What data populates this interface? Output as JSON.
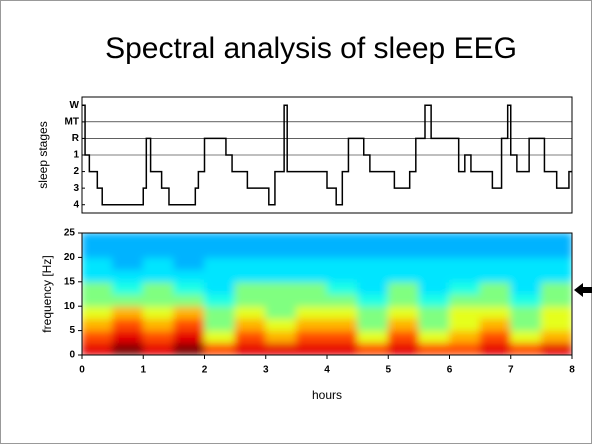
{
  "title": "Spectral analysis of sleep EEG",
  "chart_data": [
    {
      "type": "step",
      "ylabel": "sleep stages",
      "stages": [
        "W",
        "MT",
        "R",
        "1",
        "2",
        "3",
        "4"
      ],
      "xlim": [
        0,
        8
      ],
      "color": "#000000",
      "x": [
        0,
        0.05,
        0.12,
        0.25,
        0.33,
        1.0,
        1.05,
        1.12,
        1.3,
        1.42,
        1.85,
        1.9,
        2.0,
        2.35,
        2.45,
        2.7,
        3.05,
        3.15,
        3.3,
        3.35,
        4.0,
        4.15,
        4.25,
        4.35,
        4.6,
        4.7,
        5.1,
        5.35,
        5.45,
        5.6,
        5.7,
        6.15,
        6.25,
        6.35,
        6.7,
        6.85,
        6.95,
        7.0,
        7.1,
        7.3,
        7.55,
        7.75,
        7.95
      ],
      "values": [
        "W",
        "1",
        "2",
        "3",
        "4",
        "3",
        "R",
        "2",
        "3",
        "4",
        "3",
        "2",
        "R",
        "1",
        "2",
        "3",
        "4",
        "2",
        "W",
        "2",
        "3",
        "4",
        "2",
        "R",
        "1",
        "2",
        "3",
        "2",
        "R",
        "W",
        "R",
        "2",
        "1",
        "2",
        "3",
        "R",
        "W",
        "1",
        "2",
        "R",
        "2",
        "3",
        "2"
      ]
    },
    {
      "type": "heatmap",
      "xlabel": "hours",
      "ylabel": "frequency [Hz]",
      "colormap": "jet",
      "xlim": [
        0,
        8
      ],
      "xticks": [
        0,
        1,
        2,
        3,
        4,
        5,
        6,
        7,
        8
      ],
      "ylim": [
        0,
        25
      ],
      "yticks": [
        0,
        5,
        10,
        15,
        20,
        25
      ],
      "zlim": [
        0,
        10
      ],
      "xbins": [
        0,
        0.5,
        1,
        1.5,
        2,
        2.5,
        3,
        3.5,
        4,
        4.5,
        5,
        5.5,
        6,
        6.5,
        7,
        7.5,
        8
      ],
      "ybins": [
        0,
        2.5,
        5,
        7.5,
        10,
        12.5,
        15,
        17.5,
        20,
        22.5,
        25
      ],
      "z": [
        [
          9,
          10,
          9,
          10,
          8,
          9,
          9,
          9,
          9,
          8,
          9,
          8,
          8,
          9,
          8,
          9
        ],
        [
          8,
          9,
          8,
          9,
          6,
          8,
          7,
          8,
          8,
          6,
          8,
          6,
          7,
          8,
          6,
          7
        ],
        [
          7,
          8,
          7,
          8,
          5,
          7,
          6,
          7,
          7,
          5,
          7,
          5,
          6,
          7,
          5,
          6
        ],
        [
          6,
          7,
          6,
          7,
          5,
          6,
          5,
          6,
          6,
          5,
          6,
          5,
          6,
          6,
          5,
          6
        ],
        [
          5,
          5,
          5,
          5,
          4,
          5,
          5,
          5,
          5,
          4,
          5,
          4,
          5,
          5,
          4,
          5
        ],
        [
          5,
          4,
          5,
          4,
          3.5,
          5,
          5,
          5,
          4,
          3.5,
          5,
          3.5,
          4,
          5,
          3.5,
          5
        ],
        [
          3.5,
          3.5,
          3.5,
          3.5,
          3.5,
          3.5,
          3.5,
          3.5,
          3.5,
          3.5,
          3.5,
          3.5,
          3.5,
          3.5,
          3.5,
          3.5
        ],
        [
          3.5,
          3,
          3.5,
          3,
          3.5,
          3.5,
          3.5,
          3.5,
          3.5,
          3.5,
          3.5,
          3.5,
          3.5,
          3.5,
          3.5,
          3.5
        ],
        [
          3,
          3,
          3,
          3,
          3,
          3,
          3,
          3,
          3,
          3,
          3,
          3,
          3,
          3,
          3,
          3
        ],
        [
          3,
          3,
          3,
          3,
          3,
          3,
          3,
          3,
          3,
          3,
          3,
          3,
          3,
          3,
          3,
          3
        ]
      ]
    }
  ]
}
